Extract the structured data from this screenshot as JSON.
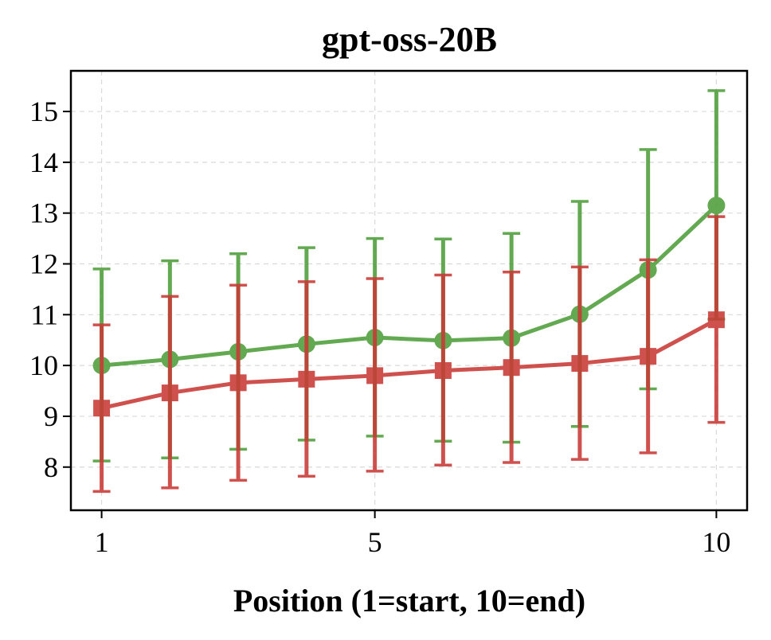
{
  "chart_data": {
    "type": "line",
    "title": "gpt-oss-20B",
    "xlabel": "Position (1=start, 10=end)",
    "ylabel": "",
    "xlim": [
      0.55,
      10.45
    ],
    "ylim": [
      7.15,
      15.8
    ],
    "xticks": [
      1,
      5,
      10
    ],
    "yticks": [
      8,
      9,
      10,
      11,
      12,
      13,
      14,
      15
    ],
    "grid": true,
    "x": [
      1,
      2,
      3,
      4,
      5,
      6,
      7,
      8,
      9,
      10
    ],
    "series": [
      {
        "name": "green",
        "color": "#4d9e3a",
        "marker": "circle",
        "values": [
          10.0,
          10.12,
          10.27,
          10.42,
          10.55,
          10.49,
          10.54,
          11.01,
          11.88,
          13.15
        ],
        "err_low": [
          8.12,
          8.18,
          8.35,
          8.53,
          8.61,
          8.51,
          8.49,
          8.8,
          9.54,
          10.91
        ],
        "err_high": [
          11.9,
          12.06,
          12.2,
          12.32,
          12.5,
          12.49,
          12.6,
          13.23,
          14.25,
          15.41
        ]
      },
      {
        "name": "red",
        "color": "#c93a36",
        "marker": "square",
        "values": [
          9.16,
          9.46,
          9.66,
          9.73,
          9.8,
          9.9,
          9.96,
          10.04,
          10.18,
          10.9
        ],
        "err_low": [
          7.52,
          7.59,
          7.74,
          7.82,
          7.92,
          8.04,
          8.09,
          8.15,
          8.28,
          8.88
        ],
        "err_high": [
          10.8,
          11.36,
          11.58,
          11.65,
          11.71,
          11.78,
          11.84,
          11.94,
          12.08,
          12.93
        ]
      }
    ]
  }
}
